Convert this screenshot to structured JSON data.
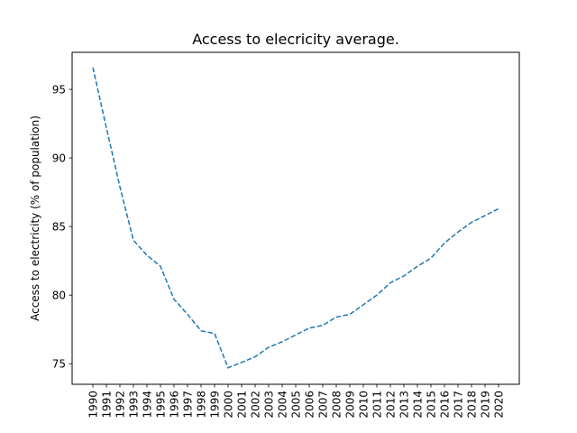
{
  "chart_data": {
    "type": "line",
    "title": "Access to elecricity average.",
    "xlabel": "",
    "ylabel": "Access to electricity (% of population)",
    "x": [
      "1990",
      "1991",
      "1992",
      "1993",
      "1994",
      "1995",
      "1996",
      "1997",
      "1998",
      "1999",
      "2000",
      "2001",
      "2002",
      "2003",
      "2004",
      "2005",
      "2006",
      "2007",
      "2008",
      "2009",
      "2010",
      "2011",
      "2012",
      "2013",
      "2014",
      "2015",
      "2016",
      "2017",
      "2018",
      "2019",
      "2020"
    ],
    "series": [
      {
        "color": "#1f77b4",
        "values": [
          96.6,
          92.2,
          87.9,
          84.0,
          82.9,
          82.1,
          79.7,
          78.6,
          77.4,
          77.2,
          74.7,
          75.1,
          75.5,
          76.2,
          76.6,
          77.1,
          77.6,
          77.8,
          78.4,
          78.6,
          79.3,
          80.0,
          80.9,
          81.4,
          82.1,
          82.7,
          83.8,
          84.6,
          85.3,
          85.8,
          86.3
        ]
      }
    ],
    "yticks": [
      75,
      80,
      85,
      90,
      95
    ],
    "ylim": [
      73.5,
      97.7
    ],
    "grid": false,
    "line_style": "dashed"
  }
}
